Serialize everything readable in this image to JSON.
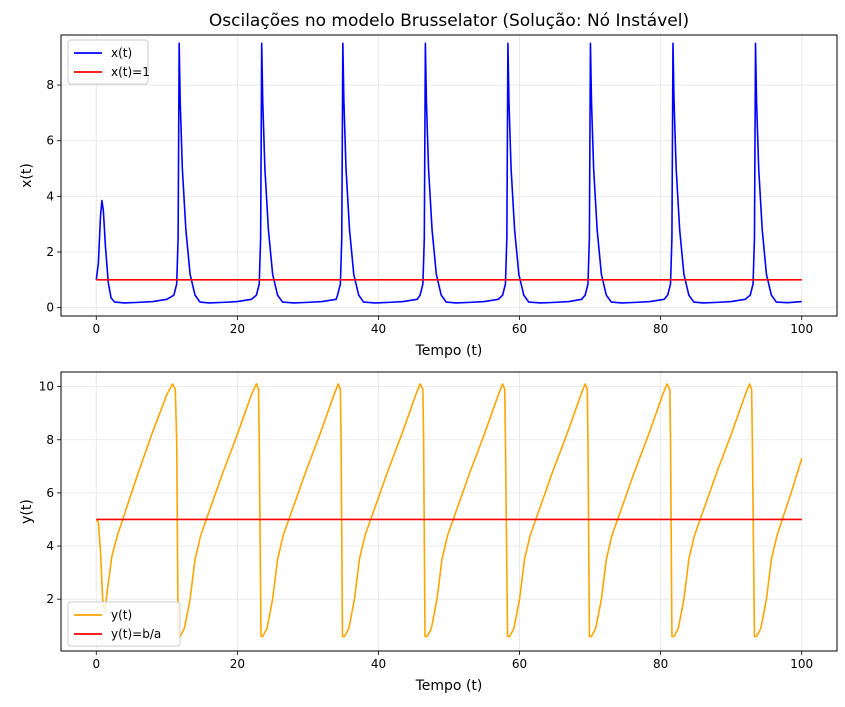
{
  "figure": {
    "background": "#ffffff"
  },
  "chart_data": [
    {
      "type": "line",
      "title": "Oscilações no modelo Brusselator (Solução: Nó Instável)",
      "xlabel": "Tempo (t)",
      "ylabel": "x(t)",
      "xlim": [
        -5,
        105
      ],
      "ylim": [
        -0.3,
        9.8
      ],
      "xticks": [
        0,
        20,
        40,
        60,
        80,
        100
      ],
      "xtick_labels": [
        "0",
        "20",
        "40",
        "60",
        "80",
        "100"
      ],
      "yticks": [
        0,
        2,
        4,
        6,
        8
      ],
      "ytick_labels": [
        "0",
        "2",
        "4",
        "6",
        "8"
      ],
      "grid": true,
      "legend_position": "upper-left",
      "series": [
        {
          "name": "x(t)",
          "color": "#0000ff",
          "points": [
            [
              0,
              1.0
            ],
            [
              0.3,
              1.6
            ],
            [
              0.6,
              3.3
            ],
            [
              0.8,
              3.85
            ],
            [
              1.0,
              3.5
            ],
            [
              1.3,
              2.2
            ],
            [
              1.7,
              0.9
            ],
            [
              2.1,
              0.35
            ],
            [
              2.6,
              0.2
            ],
            [
              4,
              0.17
            ],
            [
              6,
              0.19
            ],
            [
              8,
              0.22
            ],
            [
              10,
              0.3
            ],
            [
              11,
              0.45
            ],
            [
              11.4,
              0.85
            ],
            [
              11.6,
              2.5
            ],
            [
              11.75,
              9.5
            ],
            [
              11.9,
              7.4
            ],
            [
              12.2,
              5.0
            ],
            [
              12.7,
              2.8
            ],
            [
              13.3,
              1.2
            ],
            [
              14.0,
              0.45
            ],
            [
              14.7,
              0.2
            ],
            [
              16,
              0.17
            ],
            [
              18,
              0.19
            ],
            [
              20,
              0.22
            ],
            [
              22,
              0.3
            ],
            [
              22.7,
              0.45
            ],
            [
              23.1,
              0.85
            ],
            [
              23.3,
              2.5
            ],
            [
              23.45,
              9.5
            ],
            [
              23.6,
              7.4
            ],
            [
              23.9,
              5.0
            ],
            [
              24.4,
              2.8
            ],
            [
              25.0,
              1.2
            ],
            [
              25.7,
              0.45
            ],
            [
              26.4,
              0.2
            ],
            [
              28,
              0.17
            ],
            [
              30,
              0.19
            ],
            [
              32,
              0.22
            ],
            [
              34,
              0.3
            ],
            [
              34.2,
              0.45
            ],
            [
              34.6,
              0.85
            ],
            [
              34.8,
              2.5
            ],
            [
              34.95,
              9.5
            ],
            [
              35.1,
              7.4
            ],
            [
              35.4,
              5.0
            ],
            [
              35.9,
              2.8
            ],
            [
              36.5,
              1.2
            ],
            [
              37.2,
              0.45
            ],
            [
              37.9,
              0.2
            ],
            [
              39.5,
              0.17
            ],
            [
              41.5,
              0.19
            ],
            [
              43.5,
              0.22
            ],
            [
              45.5,
              0.3
            ],
            [
              45.9,
              0.45
            ],
            [
              46.3,
              0.85
            ],
            [
              46.5,
              2.5
            ],
            [
              46.65,
              9.5
            ],
            [
              46.8,
              7.4
            ],
            [
              47.1,
              5.0
            ],
            [
              47.6,
              2.8
            ],
            [
              48.2,
              1.2
            ],
            [
              48.9,
              0.45
            ],
            [
              49.6,
              0.2
            ],
            [
              51,
              0.17
            ],
            [
              53,
              0.19
            ],
            [
              55,
              0.22
            ],
            [
              57,
              0.3
            ],
            [
              57.6,
              0.45
            ],
            [
              58.0,
              0.85
            ],
            [
              58.2,
              2.5
            ],
            [
              58.35,
              9.5
            ],
            [
              58.5,
              7.4
            ],
            [
              58.8,
              5.0
            ],
            [
              59.3,
              2.8
            ],
            [
              59.9,
              1.2
            ],
            [
              60.6,
              0.45
            ],
            [
              61.3,
              0.2
            ],
            [
              63,
              0.17
            ],
            [
              65,
              0.19
            ],
            [
              67,
              0.22
            ],
            [
              68.8,
              0.3
            ],
            [
              69.3,
              0.45
            ],
            [
              69.7,
              0.85
            ],
            [
              69.9,
              2.5
            ],
            [
              70.05,
              9.5
            ],
            [
              70.2,
              7.4
            ],
            [
              70.5,
              5.0
            ],
            [
              71.0,
              2.8
            ],
            [
              71.6,
              1.2
            ],
            [
              72.3,
              0.45
            ],
            [
              73.0,
              0.2
            ],
            [
              74.5,
              0.17
            ],
            [
              76.5,
              0.19
            ],
            [
              78.5,
              0.22
            ],
            [
              80.5,
              0.3
            ],
            [
              81.0,
              0.45
            ],
            [
              81.4,
              0.85
            ],
            [
              81.6,
              2.5
            ],
            [
              81.75,
              9.5
            ],
            [
              81.9,
              7.4
            ],
            [
              82.2,
              5.0
            ],
            [
              82.7,
              2.8
            ],
            [
              83.3,
              1.2
            ],
            [
              84.0,
              0.45
            ],
            [
              84.7,
              0.2
            ],
            [
              86,
              0.17
            ],
            [
              88,
              0.19
            ],
            [
              90,
              0.22
            ],
            [
              92,
              0.3
            ],
            [
              92.7,
              0.45
            ],
            [
              93.1,
              0.85
            ],
            [
              93.3,
              2.5
            ],
            [
              93.45,
              9.5
            ],
            [
              93.6,
              7.4
            ],
            [
              93.9,
              5.0
            ],
            [
              94.4,
              2.8
            ],
            [
              95.0,
              1.2
            ],
            [
              95.7,
              0.45
            ],
            [
              96.4,
              0.2
            ],
            [
              98,
              0.18
            ],
            [
              100,
              0.22
            ]
          ]
        },
        {
          "name": "x(t)=1",
          "color": "#ff0000",
          "points": [
            [
              0,
              1
            ],
            [
              100,
              1
            ]
          ]
        }
      ]
    },
    {
      "type": "line",
      "title": "",
      "xlabel": "Tempo (t)",
      "ylabel": "y(t)",
      "xlim": [
        -5,
        105
      ],
      "ylim": [
        0.05,
        10.55
      ],
      "xticks": [
        0,
        20,
        40,
        60,
        80,
        100
      ],
      "xtick_labels": [
        "0",
        "20",
        "40",
        "60",
        "80",
        "100"
      ],
      "yticks": [
        2,
        4,
        6,
        8,
        10
      ],
      "ytick_labels": [
        "2",
        "4",
        "6",
        "8",
        "10"
      ],
      "grid": true,
      "legend_position": "lower-left",
      "series": [
        {
          "name": "y(t)",
          "color": "#ffa500",
          "points": [
            [
              0,
              5.0
            ],
            [
              0.3,
              4.9
            ],
            [
              0.6,
              3.8
            ],
            [
              0.9,
              2.0
            ],
            [
              1.2,
              1.5
            ],
            [
              1.6,
              2.4
            ],
            [
              2.2,
              3.6
            ],
            [
              3.0,
              4.4
            ],
            [
              4,
              5.2
            ],
            [
              6,
              6.8
            ],
            [
              8,
              8.3
            ],
            [
              10,
              9.7
            ],
            [
              10.8,
              10.1
            ],
            [
              11.2,
              9.9
            ],
            [
              11.4,
              8.0
            ],
            [
              11.6,
              0.7
            ],
            [
              11.9,
              0.6
            ],
            [
              12.5,
              0.9
            ],
            [
              13.3,
              2.0
            ],
            [
              14.0,
              3.5
            ],
            [
              14.8,
              4.4
            ],
            [
              16,
              5.3
            ],
            [
              18,
              6.8
            ],
            [
              20,
              8.2
            ],
            [
              22,
              9.7
            ],
            [
              22.7,
              10.1
            ],
            [
              23.0,
              9.9
            ],
            [
              23.1,
              8.0
            ],
            [
              23.35,
              0.6
            ],
            [
              23.6,
              0.6
            ],
            [
              24.2,
              0.9
            ],
            [
              25.0,
              2.0
            ],
            [
              25.7,
              3.5
            ],
            [
              26.5,
              4.4
            ],
            [
              27.7,
              5.3
            ],
            [
              29.7,
              6.8
            ],
            [
              31.7,
              8.2
            ],
            [
              33.7,
              9.7
            ],
            [
              34.3,
              10.1
            ],
            [
              34.6,
              9.9
            ],
            [
              34.7,
              8.0
            ],
            [
              34.9,
              0.6
            ],
            [
              35.2,
              0.6
            ],
            [
              35.8,
              0.9
            ],
            [
              36.6,
              2.0
            ],
            [
              37.3,
              3.5
            ],
            [
              38.1,
              4.4
            ],
            [
              39.3,
              5.3
            ],
            [
              41.3,
              6.8
            ],
            [
              43.3,
              8.2
            ],
            [
              45.3,
              9.7
            ],
            [
              45.9,
              10.1
            ],
            [
              46.3,
              9.9
            ],
            [
              46.4,
              8.0
            ],
            [
              46.6,
              0.6
            ],
            [
              46.9,
              0.6
            ],
            [
              47.5,
              0.9
            ],
            [
              48.3,
              2.0
            ],
            [
              49.0,
              3.5
            ],
            [
              49.8,
              4.4
            ],
            [
              51,
              5.3
            ],
            [
              53,
              6.8
            ],
            [
              55,
              8.2
            ],
            [
              57,
              9.7
            ],
            [
              57.6,
              10.1
            ],
            [
              57.9,
              9.9
            ],
            [
              58.0,
              8.0
            ],
            [
              58.3,
              0.6
            ],
            [
              58.6,
              0.6
            ],
            [
              59.2,
              0.9
            ],
            [
              60.0,
              2.0
            ],
            [
              60.7,
              3.5
            ],
            [
              61.5,
              4.4
            ],
            [
              62.7,
              5.3
            ],
            [
              64.7,
              6.8
            ],
            [
              66.7,
              8.2
            ],
            [
              68.7,
              9.7
            ],
            [
              69.3,
              10.1
            ],
            [
              69.6,
              9.9
            ],
            [
              69.7,
              8.0
            ],
            [
              69.9,
              0.6
            ],
            [
              70.2,
              0.6
            ],
            [
              70.8,
              0.9
            ],
            [
              71.6,
              2.0
            ],
            [
              72.3,
              3.5
            ],
            [
              73.1,
              4.4
            ],
            [
              74.3,
              5.3
            ],
            [
              76.3,
              6.8
            ],
            [
              78.3,
              8.2
            ],
            [
              80.3,
              9.7
            ],
            [
              80.9,
              10.1
            ],
            [
              81.3,
              9.9
            ],
            [
              81.4,
              8.0
            ],
            [
              81.6,
              0.6
            ],
            [
              81.9,
              0.6
            ],
            [
              82.5,
              0.9
            ],
            [
              83.3,
              2.0
            ],
            [
              84.0,
              3.5
            ],
            [
              84.8,
              4.4
            ],
            [
              86,
              5.3
            ],
            [
              88,
              6.8
            ],
            [
              90,
              8.2
            ],
            [
              92,
              9.7
            ],
            [
              92.6,
              10.1
            ],
            [
              92.9,
              9.9
            ],
            [
              93.0,
              8.0
            ],
            [
              93.3,
              0.6
            ],
            [
              93.6,
              0.6
            ],
            [
              94.2,
              0.9
            ],
            [
              95.0,
              2.0
            ],
            [
              95.7,
              3.5
            ],
            [
              96.5,
              4.4
            ],
            [
              97.5,
              5.2
            ],
            [
              98.5,
              6.0
            ],
            [
              100,
              7.3
            ]
          ]
        },
        {
          "name": "y(t)=b/a",
          "color": "#ff0000",
          "points": [
            [
              0,
              5
            ],
            [
              100,
              5
            ]
          ]
        }
      ]
    }
  ],
  "style": {
    "grid_color": "#e6e6e6",
    "axis_color": "#000000",
    "legend_border": "#cccccc"
  }
}
